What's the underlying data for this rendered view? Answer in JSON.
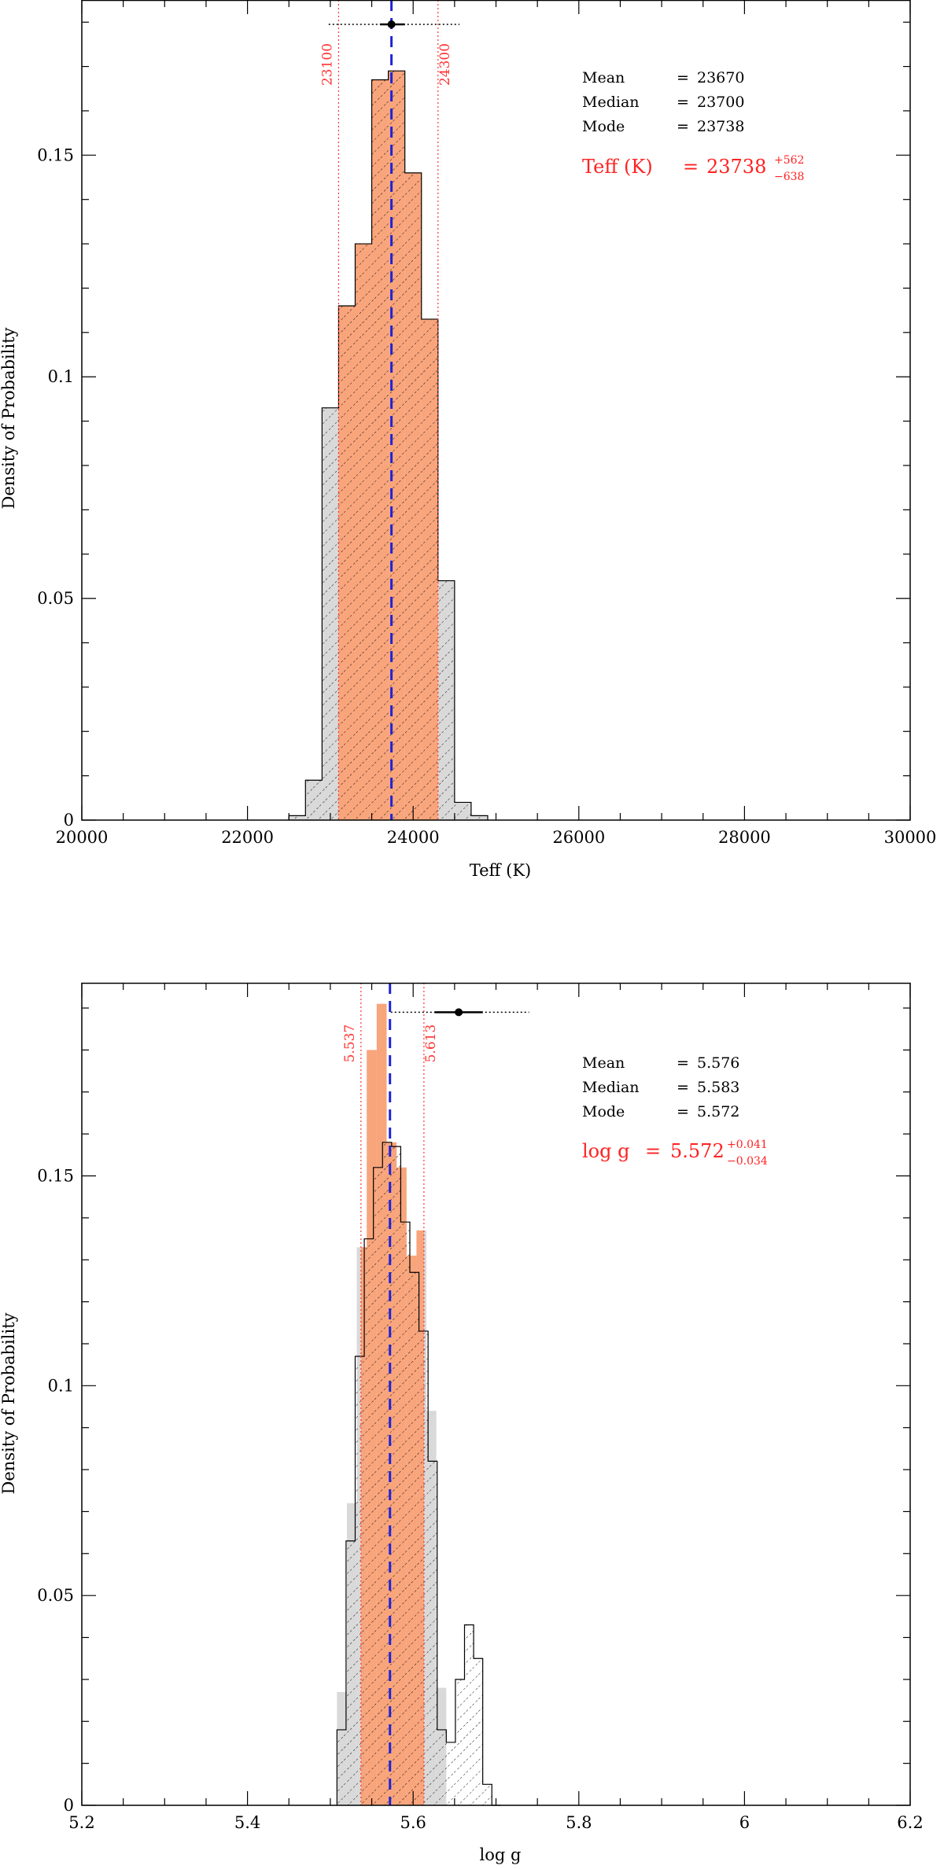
{
  "colors": {
    "orange_fill": "#f9a57c",
    "gray_fill": "#d9d9d9",
    "dashed_line": "#1f24d8",
    "bound_lines": "#ff3333",
    "result_text": "#ff2222",
    "axis": "#000000"
  },
  "chart_data": [
    {
      "type": "histogram",
      "xlabel": "Teff (K)",
      "ylabel": "Density of Probability",
      "xlim": [
        20000,
        30000
      ],
      "ylim": [
        0,
        0.185
      ],
      "xticks": [
        20000,
        22000,
        24000,
        26000,
        28000,
        30000
      ],
      "xtick_labels": [
        "20000",
        "22000",
        "24000",
        "26000",
        "28000",
        "30000"
      ],
      "yticks": [
        0,
        0.05,
        0.1,
        0.15
      ],
      "ytick_labels": [
        "0",
        "0.05",
        "0.1",
        "0.15"
      ],
      "bin_edges": [
        22500,
        22700,
        22900,
        23100,
        23300,
        23500,
        23700,
        23900,
        24100,
        24300,
        24500,
        24700,
        24900
      ],
      "series": [
        {
          "style": "gray-hatched",
          "values": [
            0.001,
            0.009,
            0.093,
            0.116,
            0.13,
            0.167,
            0.169,
            0.146,
            0.113,
            0.054,
            0.004,
            0.001
          ]
        },
        {
          "style": "orange-filled",
          "values": [
            0,
            0,
            0,
            0.116,
            0.13,
            0.167,
            0.169,
            0.146,
            0.113,
            0,
            0,
            0
          ]
        }
      ],
      "mode": 23738,
      "interval": [
        23100,
        24300
      ],
      "interval_labels": [
        "23100",
        "24300"
      ],
      "errorbar": {
        "y": 0.1795,
        "center": 23738,
        "solid": [
          23600,
          23900
        ],
        "dotted": [
          22980,
          24560
        ]
      },
      "stats": [
        {
          "label": "Mean",
          "value": "23670"
        },
        {
          "label": "Median",
          "value": "23700"
        },
        {
          "label": "Mode",
          "value": "23738"
        }
      ],
      "result": {
        "name": "Teff (K)",
        "value": "23738",
        "plus": "+562",
        "minus": "−638"
      }
    },
    {
      "type": "histogram",
      "xlabel": "log g",
      "ylabel": "Density of Probability",
      "xlim": [
        5.2,
        6.2
      ],
      "ylim": [
        0,
        0.196
      ],
      "xticks": [
        5.2,
        5.4,
        5.6,
        5.8,
        6.0,
        6.2
      ],
      "xtick_labels": [
        "5.2",
        "5.4",
        "5.6",
        "5.8",
        "6",
        "6.2"
      ],
      "yticks": [
        0,
        0.05,
        0.1,
        0.15
      ],
      "ytick_labels": [
        "0",
        "0.05",
        "0.1",
        "0.15"
      ],
      "gray_filled": {
        "bin_edges": [
          5.508,
          5.52,
          5.532,
          5.544,
          5.556,
          5.568,
          5.58,
          5.592,
          5.604,
          5.616,
          5.628,
          5.64
        ],
        "values": [
          0.027,
          0.072,
          0.133,
          0.18,
          0.191,
          0.158,
          0.152,
          0.131,
          0.137,
          0.094,
          0.028
        ]
      },
      "orange_filled": {
        "bin_edges": [
          5.537,
          5.544,
          5.556,
          5.568,
          5.58,
          5.592,
          5.604,
          5.613
        ],
        "values": [
          0.133,
          0.18,
          0.191,
          0.158,
          0.152,
          0.131,
          0.137
        ]
      },
      "hatched_outline": {
        "bin_edges": [
          5.508,
          5.519,
          5.53,
          5.541,
          5.552,
          5.563,
          5.574,
          5.585,
          5.596,
          5.607,
          5.618,
          5.629,
          5.64,
          5.651,
          5.662,
          5.673,
          5.684,
          5.695,
          5.706
        ],
        "values": [
          0.018,
          0.063,
          0.107,
          0.135,
          0.152,
          0.158,
          0.157,
          0.139,
          0.127,
          0.113,
          0.082,
          0.018,
          0.015,
          0.03,
          0.043,
          0.035,
          0.005,
          0.0
        ]
      },
      "mode": 5.572,
      "interval": [
        5.537,
        5.613
      ],
      "interval_labels": [
        "5.537",
        "5.613"
      ],
      "errorbar": {
        "y": 0.189,
        "center": 5.655,
        "solid": [
          5.626,
          5.684
        ],
        "dotted": [
          5.573,
          5.74
        ]
      },
      "stats": [
        {
          "label": "Mean",
          "value": "5.576"
        },
        {
          "label": "Median",
          "value": "5.583"
        },
        {
          "label": "Mode",
          "value": "5.572"
        }
      ],
      "result": {
        "name": "log g",
        "value": "5.572",
        "plus": "+0.041",
        "minus": "−0.034"
      }
    }
  ]
}
